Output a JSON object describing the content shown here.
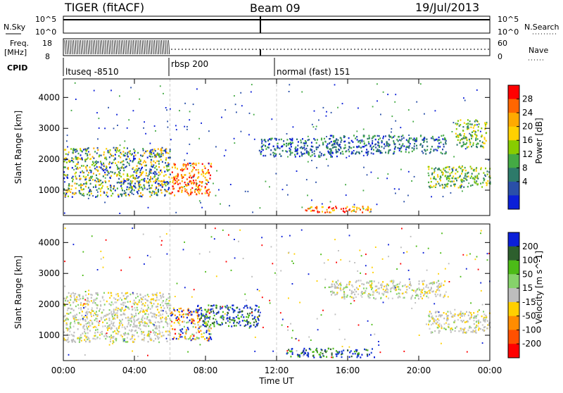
{
  "header": {
    "radar": "TIGER (fitACF)",
    "beam": "Beam 09",
    "date": "19/Jul/2013"
  },
  "panels": {
    "nsky_label": "N.Sky",
    "nsky_ticks": [
      "10^5",
      "10^0"
    ],
    "nsearch_label": "N.Search",
    "nsearch_ticks": [
      "10^5",
      "10^0"
    ],
    "freq_label": "Freq.",
    "freq_unit": "[MHz]",
    "freq_ticks": [
      "18",
      "8"
    ],
    "nave_label": "Nave",
    "nave_ticks": [
      "60",
      "0"
    ],
    "cpid_label": "CPID",
    "cpid_segments": [
      "ltuseq -8510",
      "rbsp 200",
      "normal (fast) 151"
    ],
    "x_axis_title": "Time UT",
    "y_axis_title": "Slant Range [km]"
  },
  "chart_data": [
    {
      "type": "heatmap",
      "title": "",
      "variable": "Power",
      "colorbar_label": "Power [dB]",
      "colorbar_ticks": [
        "28",
        "24",
        "20",
        "16",
        "12",
        "8",
        "4"
      ],
      "colorbar_colors": [
        "#ff0000",
        "#ff6600",
        "#ffaa00",
        "#ffd000",
        "#88cc00",
        "#44aa44",
        "#2d7a6a",
        "#2a4fa8",
        "#0b1fd8"
      ],
      "xlabel": "Time UT",
      "ylabel": "Slant Range [km]",
      "x_ticks": [
        "00:00",
        "04:00",
        "08:00",
        "12:00",
        "16:00",
        "20:00",
        "00:00"
      ],
      "y_ticks": [
        "1000",
        "2000",
        "3000",
        "4000"
      ],
      "xlim_hours": [
        0,
        24
      ],
      "ylim_km": [
        180,
        4600
      ],
      "regions": [
        {
          "t_start": 0.0,
          "t_end": 6.0,
          "r_min": 800,
          "r_max": 2400,
          "level": "mixed"
        },
        {
          "t_start": 6.0,
          "t_end": 8.3,
          "r_min": 850,
          "r_max": 1900,
          "level": "high"
        },
        {
          "t_start": 11.0,
          "t_end": 15.5,
          "r_min": 2100,
          "r_max": 2700,
          "level": "low"
        },
        {
          "t_start": 13.5,
          "t_end": 17.5,
          "r_min": 300,
          "r_max": 500,
          "level": "high"
        },
        {
          "t_start": 15.0,
          "t_end": 21.5,
          "r_min": 2200,
          "r_max": 2800,
          "level": "low"
        },
        {
          "t_start": 20.5,
          "t_end": 24.0,
          "r_min": 1100,
          "r_max": 1800,
          "level": "mid"
        },
        {
          "t_start": 22.0,
          "t_end": 23.8,
          "r_min": 2400,
          "r_max": 3300,
          "level": "mid"
        }
      ]
    },
    {
      "type": "heatmap",
      "title": "",
      "variable": "Velocity",
      "colorbar_label": "Velocity [m s^-1]",
      "colorbar_ticks": [
        "200",
        "100",
        "50",
        "15",
        "-15",
        "-50",
        "-100",
        "-200"
      ],
      "colorbar_colors": [
        "#0b1fd8",
        "#2d5f2d",
        "#4cbb17",
        "#86d26b",
        "#bdbdbd",
        "#ffd000",
        "#ff8c00",
        "#ff5000",
        "#ff0000"
      ],
      "xlabel": "Time UT",
      "ylabel": "Slant Range [km]",
      "x_ticks": [
        "00:00",
        "04:00",
        "08:00",
        "12:00",
        "16:00",
        "20:00",
        "00:00"
      ],
      "y_ticks": [
        "1000",
        "2000",
        "3000",
        "4000"
      ],
      "xlim_hours": [
        0,
        24
      ],
      "ylim_km": [
        180,
        4600
      ],
      "regions": [
        {
          "t_start": 0.0,
          "t_end": 6.0,
          "r_min": 800,
          "r_max": 2400,
          "level": "near-zero"
        },
        {
          "t_start": 6.0,
          "t_end": 8.3,
          "r_min": 850,
          "r_max": 1900,
          "level": "mixed"
        },
        {
          "t_start": 7.5,
          "t_end": 11.0,
          "r_min": 1300,
          "r_max": 2000,
          "level": "positive"
        },
        {
          "t_start": 12.5,
          "t_end": 17.5,
          "r_min": 300,
          "r_max": 600,
          "level": "positive"
        },
        {
          "t_start": 15.0,
          "t_end": 21.5,
          "r_min": 2200,
          "r_max": 2800,
          "level": "near-zero"
        },
        {
          "t_start": 20.5,
          "t_end": 24.0,
          "r_min": 1100,
          "r_max": 1800,
          "level": "near-zero"
        }
      ]
    }
  ]
}
